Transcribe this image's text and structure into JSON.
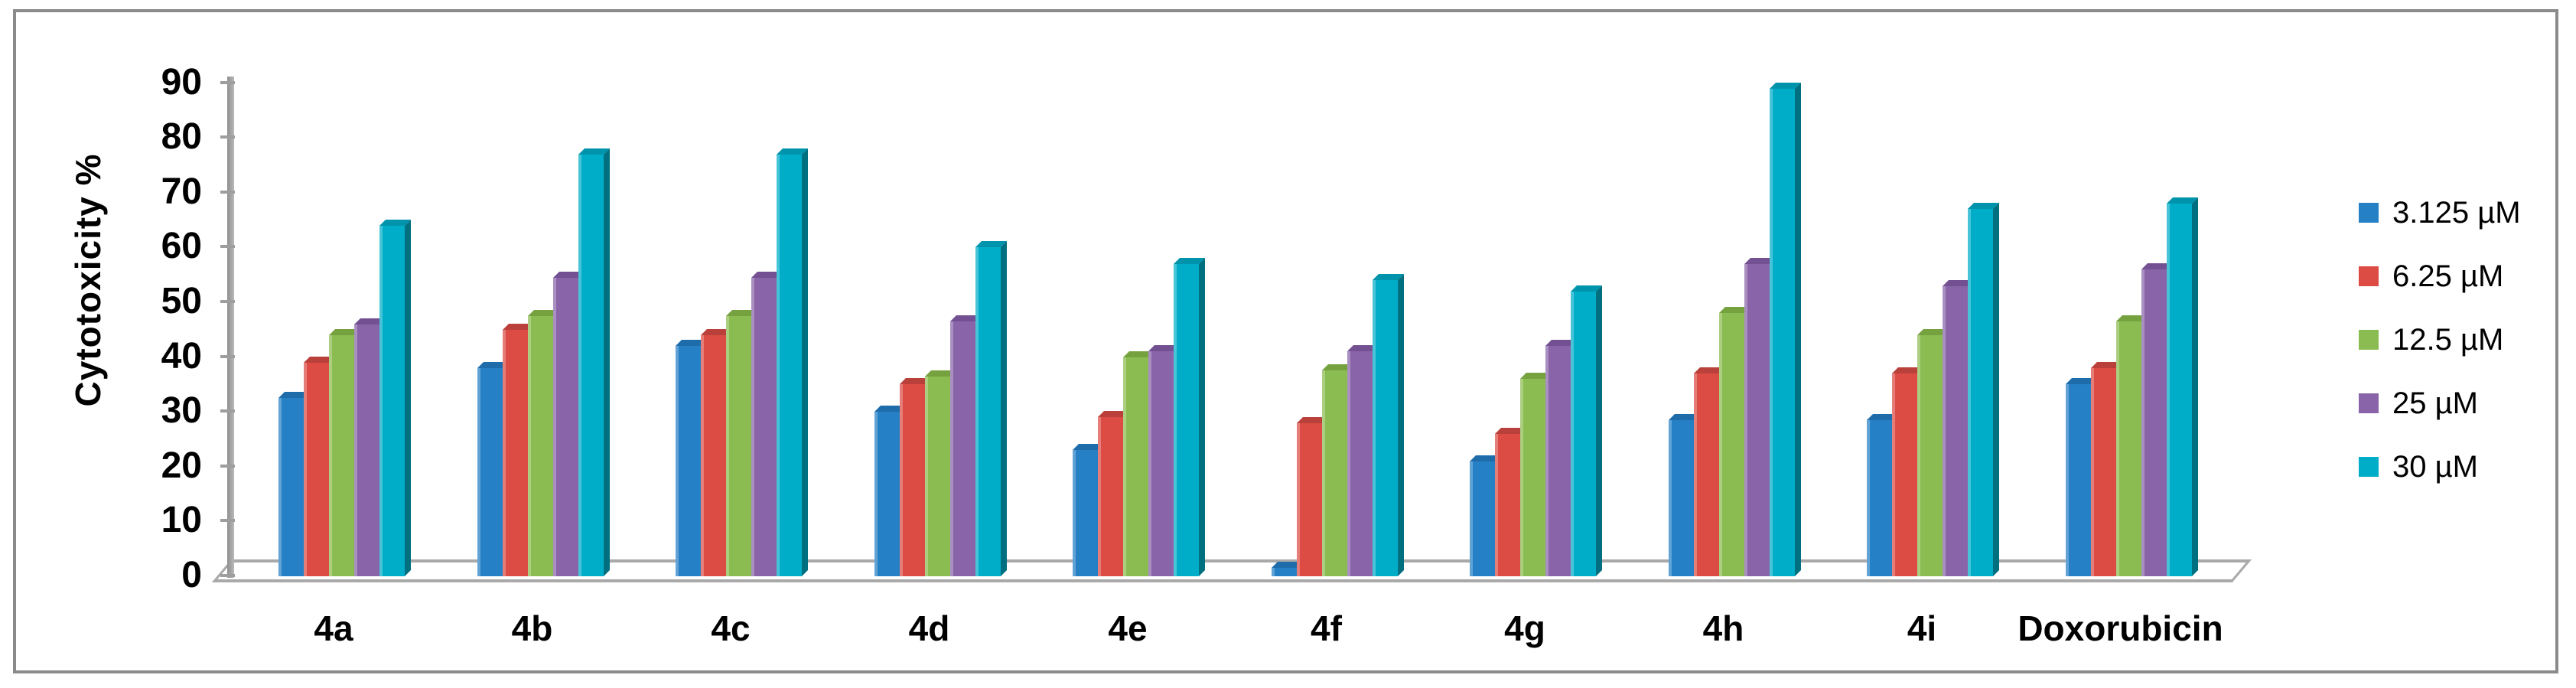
{
  "figure": {
    "background": "#ffffff",
    "border_color": "#8b8b8b",
    "axis_color": "#a9a9a9"
  },
  "chart_data": {
    "type": "bar",
    "title": "",
    "xlabel": "",
    "ylabel": "Cytotoxicity %",
    "ylim": [
      0,
      90
    ],
    "ytick_step": 10,
    "ytick_labels": [
      "0",
      "10",
      "20",
      "30",
      "40",
      "50",
      "60",
      "70",
      "80",
      "90"
    ],
    "grid": false,
    "legend_position": "right",
    "style": "3d-column",
    "categories": [
      "4a",
      "4b",
      "4c",
      "4d",
      "4e",
      "4f",
      "4g",
      "4h",
      "4i",
      "Doxorubicin"
    ],
    "series": [
      {
        "name": "3.125 µM",
        "color": "#2680C6",
        "side_color": "#1A5B8E",
        "top_color": "#1F6CAB",
        "values": [
          32.5,
          38,
          42,
          30,
          23,
          1.5,
          21,
          28.5,
          28.5,
          35
        ]
      },
      {
        "name": "6.25 µM",
        "color": "#DC4C45",
        "side_color": "#A13732",
        "top_color": "#BA403B",
        "values": [
          39,
          45,
          44,
          35,
          29,
          28,
          26,
          37,
          37,
          38
        ]
      },
      {
        "name": "12.5 µM",
        "color": "#8BBC51",
        "side_color": "#60812F",
        "top_color": "#75A23F",
        "values": [
          44,
          47.5,
          47.5,
          36.5,
          40,
          37.5,
          36,
          48,
          44,
          46.5
        ]
      },
      {
        "name": "25 µM",
        "color": "#8A64A9",
        "side_color": "#5E4377",
        "top_color": "#725092",
        "values": [
          46,
          54.5,
          54.5,
          46.5,
          41,
          41,
          42,
          57,
          53,
          56
        ]
      },
      {
        "name": "30 µM",
        "color": "#00ADC9",
        "side_color": "#006F80",
        "top_color": "#0094AC",
        "values": [
          64,
          77,
          77,
          60,
          57,
          54,
          52,
          89,
          67,
          68
        ]
      }
    ]
  }
}
